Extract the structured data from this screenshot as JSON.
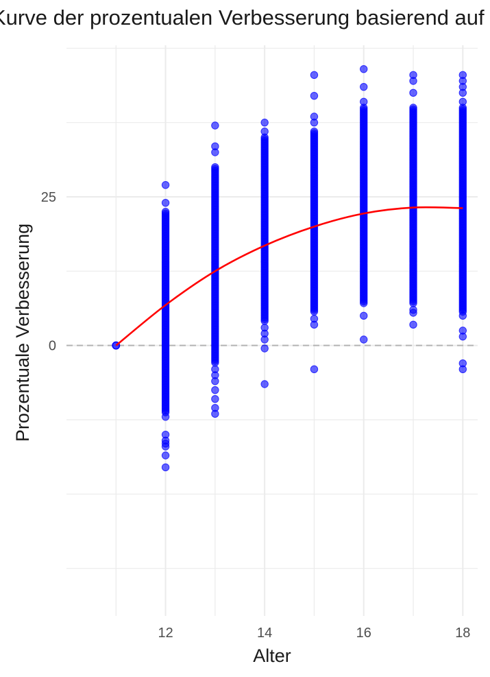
{
  "chart_data": {
    "type": "scatter",
    "title": "Kurve der prozentualen Verbesserung basierend auf dem Alter",
    "xlabel": "Alter",
    "ylabel": "Prozentuale Verbesserung",
    "xlim": [
      10.0,
      18.3
    ],
    "ylim": [
      -45.5,
      50.5
    ],
    "x_ticks": [
      12,
      14,
      16,
      18
    ],
    "y_ticks": [
      0,
      25
    ],
    "grid": true,
    "reference_line": {
      "y": 0,
      "style": "dashed",
      "color": "#b3b3b3"
    },
    "colors": {
      "points": "#0000ff",
      "trend": "#ff0000",
      "grid": "#ebebeb"
    },
    "series": [
      {
        "type": "scatter",
        "point_groups": [
          {
            "x": 11,
            "y_min": 0,
            "y_max": 0,
            "outliers": []
          },
          {
            "x": 12,
            "y_min": -11.5,
            "y_max": 22.5,
            "outliers": [
              27,
              24,
              -12,
              -15,
              -16,
              -16.5,
              -17,
              -18.5,
              -20.5
            ]
          },
          {
            "x": 13,
            "y_min": -3,
            "y_max": 30,
            "outliers": [
              37,
              33.5,
              32.5,
              -4,
              -5,
              -6,
              -7.5,
              -9,
              -10.5,
              -11.5
            ]
          },
          {
            "x": 14,
            "y_min": 4,
            "y_max": 35,
            "outliers": [
              37.5,
              36,
              3,
              2,
              1,
              -0.5,
              -6.5
            ]
          },
          {
            "x": 15,
            "y_min": 5.5,
            "y_max": 36,
            "outliers": [
              45.5,
              42,
              38.5,
              37.5,
              4.5,
              3.5,
              -4
            ]
          },
          {
            "x": 16,
            "y_min": 7,
            "y_max": 40,
            "outliers": [
              46.5,
              43.5,
              41,
              5,
              1
            ]
          },
          {
            "x": 17,
            "y_min": 7,
            "y_max": 40,
            "outliers": [
              45.5,
              44.5,
              42.5,
              6,
              5.5,
              3.5
            ]
          },
          {
            "x": 18,
            "y_min": 5.5,
            "y_max": 40,
            "outliers": [
              45.5,
              44.5,
              43.5,
              42.5,
              41,
              5,
              2.5,
              1.5,
              -3,
              -4
            ]
          }
        ]
      },
      {
        "type": "line",
        "x": [
          11,
          12,
          13,
          14,
          15,
          16,
          17,
          18
        ],
        "y": [
          0,
          6.8,
          12.5,
          16.8,
          20.0,
          22.2,
          23.2,
          23.1
        ]
      }
    ]
  }
}
